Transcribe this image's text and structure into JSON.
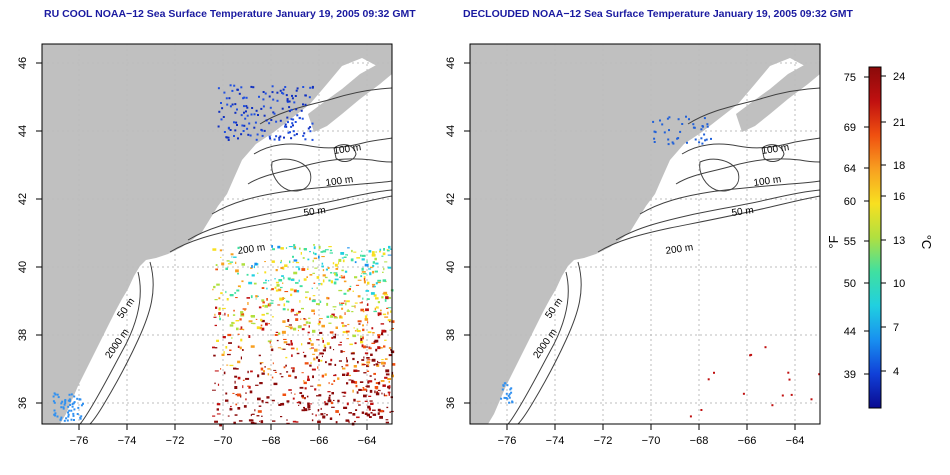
{
  "colors": {
    "land": "#c0c0c0",
    "ocean": "#ffffff",
    "title": "#1a1aa0",
    "contour": "#404040",
    "grid": "#bdbdbd",
    "frame": "#000000"
  },
  "panels": [
    {
      "title": "RU COOL NOAA−12 Sea Surface Temperature January 19, 2005 09:32 GMT",
      "shows_clouds": true
    },
    {
      "title": "DECLOUDED NOAA−12 Sea Surface Temperature January 19, 2005 09:32 GMT",
      "shows_clouds": false
    }
  ],
  "axes": {
    "lon_ticks": [
      "−76",
      "−74",
      "−72",
      "−70",
      "−68",
      "−66",
      "−64"
    ],
    "lat_ticks": [
      "36",
      "38",
      "40",
      "42",
      "44",
      "46"
    ]
  },
  "contour_labels": [
    "100 m",
    "100 m",
    "50 m",
    "200 m",
    "50 m",
    "2000 m"
  ],
  "colorbar": {
    "f_label": "°F",
    "c_label": "°C",
    "f_ticks": [
      "75",
      "69",
      "64",
      "60",
      "55",
      "50",
      "44",
      "39"
    ],
    "c_ticks": [
      "24",
      "21",
      "18",
      "16",
      "13",
      "10",
      "7",
      "4"
    ],
    "gradient": [
      "#0a0a90",
      "#1040d8",
      "#1890f0",
      "#20d0e0",
      "#40e0a0",
      "#b0e040",
      "#f8e020",
      "#f8a020",
      "#f05010",
      "#c01010",
      "#8a0a0a"
    ]
  }
}
